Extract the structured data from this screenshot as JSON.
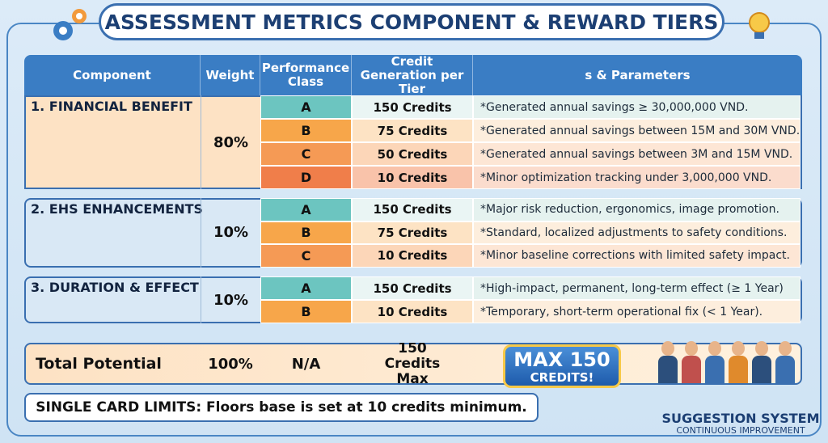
{
  "header": {
    "title": "ASSESSMENT METRICS COMPONENT & REWARD TIERS"
  },
  "table": {
    "columns": [
      "Component",
      "Weight",
      "Performance Class",
      "Credit Generation per Tier",
      "s & Parameters"
    ],
    "sections": [
      {
        "component": "1. FINANCIAL BENEFIT",
        "weight": "80%",
        "rows": [
          {
            "class": "A",
            "credits": "150 Credits",
            "description": "*Generated annual savings ≥ 30,000,000 VND."
          },
          {
            "class": "B",
            "credits": "75 Credits",
            "description": "*Generated annual savings between 15M and 30M VND."
          },
          {
            "class": "C",
            "credits": "50 Credits",
            "description": "*Generated annual savings between 3M and 15M VND."
          },
          {
            "class": "D",
            "credits": "10 Credits",
            "description": "*Minor optimization tracking under 3,000,000 VND."
          }
        ]
      },
      {
        "component": "2. EHS ENHANCEMENTS",
        "weight": "10%",
        "rows": [
          {
            "class": "A",
            "credits": "150 Credits",
            "description": "*Major risk reduction, ergonomics, image promotion."
          },
          {
            "class": "B",
            "credits": "75 Credits",
            "description": "*Standard, localized adjustments to safety conditions."
          },
          {
            "class": "C",
            "credits": "10 Credits",
            "description": "*Minor baseline corrections with limited safety impact."
          }
        ]
      },
      {
        "component": "3. DURATION & EFFECT",
        "weight": "10%",
        "rows": [
          {
            "class": "A",
            "credits": "150 Credits",
            "description": "*High-impact, permanent, long-term effect (≥ 1 Year)"
          },
          {
            "class": "B",
            "credits": "10 Credits",
            "description": "*Temporary, short-term operational fix (< 1 Year)."
          }
        ]
      }
    ],
    "total": {
      "label": "Total Potential",
      "weight": "100%",
      "class": "N/A",
      "credits": "150 Credits Max"
    }
  },
  "badge": {
    "line1": "MAX 150",
    "line2": "CREDITS!"
  },
  "footer": {
    "note": "SINGLE CARD LIMITS: Floors base is set at 10 credits minimum.",
    "brand": "SUGGESTION SYSTEM",
    "tagline": "CONTINUOUS IMPROVEMENT"
  }
}
